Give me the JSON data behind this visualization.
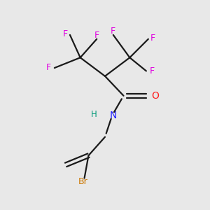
{
  "background_color": "#e8e8e8",
  "bond_color": "#1a1a1a",
  "F_color": "#e000e0",
  "N_color": "#2020ff",
  "O_color": "#ff2020",
  "Br_color": "#cc7700",
  "H_color": "#009977",
  "figsize": [
    3.0,
    3.0
  ],
  "dpi": 100,
  "xlim": [
    0,
    10
  ],
  "ylim": [
    0,
    10
  ],
  "lw": 1.6,
  "fs": 9.0
}
